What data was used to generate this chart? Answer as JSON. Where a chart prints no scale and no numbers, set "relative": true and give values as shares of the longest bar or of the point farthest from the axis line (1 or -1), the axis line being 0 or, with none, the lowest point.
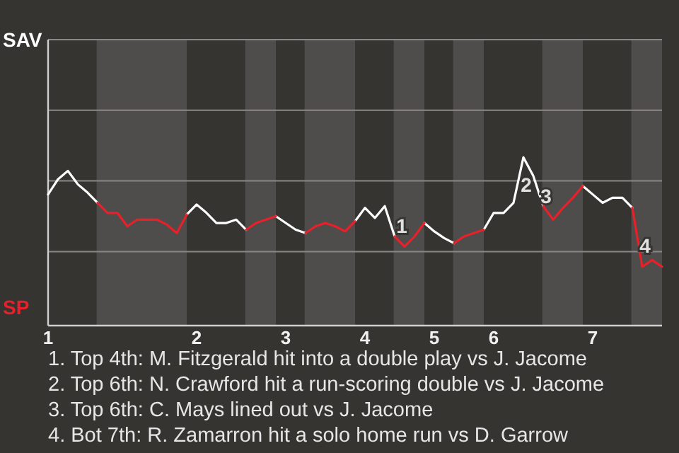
{
  "chart_data": {
    "type": "line",
    "relative": true,
    "categories": [
      "1",
      null,
      null,
      null,
      null,
      null,
      null,
      null,
      null,
      null,
      null,
      null,
      null,
      null,
      null,
      "2",
      null,
      null,
      null,
      null,
      null,
      null,
      null,
      null,
      "3",
      null,
      null,
      null,
      null,
      null,
      null,
      null,
      "4",
      null,
      null,
      null,
      null,
      null,
      null,
      "5",
      null,
      null,
      null,
      null,
      null,
      "6",
      null,
      null,
      null,
      null,
      null,
      null,
      null,
      null,
      null,
      "7",
      null,
      null,
      null,
      null,
      null,
      null,
      null
    ],
    "series": [
      {
        "name": "SAV",
        "color": "#ffffff",
        "values": [
          0.78,
          0.87,
          0.92,
          0.84,
          0.79,
          0.73,
          null,
          null,
          null,
          null,
          null,
          null,
          null,
          null,
          0.66,
          0.72,
          0.67,
          0.61,
          0.61,
          0.63,
          0.57,
          null,
          null,
          0.65,
          0.61,
          0.57,
          0.55,
          null,
          null,
          null,
          null,
          0.62,
          0.7,
          0.64,
          0.71,
          0.53,
          null,
          null,
          0.61,
          0.56,
          0.52,
          0.49,
          null,
          null,
          0.57,
          0.67,
          0.67,
          0.73,
          1,
          0.89,
          0.71,
          null,
          null,
          null,
          0.83,
          0.78,
          0.73,
          0.76,
          0.76,
          0.7,
          null,
          null,
          null
        ]
      },
      {
        "name": "SP",
        "color": "#e8202a",
        "values": [
          null,
          null,
          null,
          null,
          null,
          0.73,
          0.67,
          0.67,
          0.59,
          0.63,
          0.63,
          0.63,
          0.6,
          0.55,
          0.66,
          null,
          null,
          null,
          null,
          null,
          0.57,
          0.61,
          0.63,
          0.65,
          null,
          null,
          0.55,
          0.59,
          0.61,
          0.59,
          0.56,
          0.62,
          null,
          null,
          null,
          0.53,
          0.47,
          0.53,
          0.61,
          null,
          null,
          0.49,
          0.53,
          0.55,
          0.57,
          null,
          null,
          null,
          null,
          null,
          0.71,
          0.63,
          0.7,
          0.76,
          0.83,
          null,
          null,
          null,
          null,
          0.7,
          0.35,
          0.39,
          0.35
        ]
      }
    ],
    "ref_lines": [
      {
        "axis": "y",
        "value": 0.44,
        "color": "#8a8886"
      },
      {
        "axis": "y",
        "value": 0.86,
        "color": "#8a8886"
      },
      {
        "axis": "y",
        "value": 1.28,
        "color": "#8a8886"
      }
    ],
    "legend": "left",
    "annotations": [
      "1",
      "2",
      "3",
      "4",
      "1. Top 4th: M. Fitzgerald hit into a double play vs J. Jacome",
      "2. Top 6th: N. Crawford hit a run-scoring double vs J. Jacome",
      "3. Top 6th: C. Mays lined out vs J. Jacome",
      "4. Bot 7th: R. Zamarron hit a solo home run vs D. Garrow"
    ]
  }
}
